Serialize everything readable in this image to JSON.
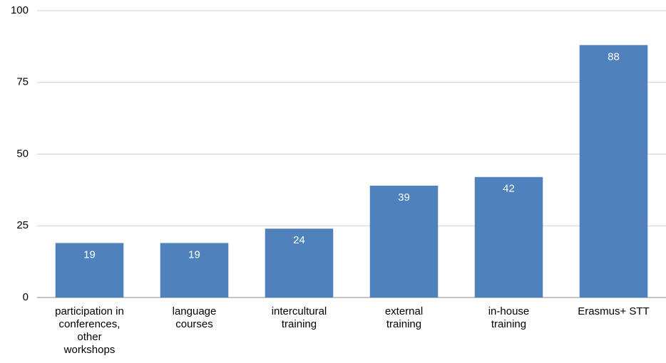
{
  "chart_data": {
    "type": "bar",
    "categories": [
      "participation in conferences, other workshops",
      "language courses",
      "intercultural training",
      "external training",
      "in-house training",
      "Erasmus+ STT"
    ],
    "values": [
      19,
      19,
      24,
      39,
      42,
      88
    ],
    "color": "#4f81bd",
    "ylim": [
      0,
      100
    ],
    "yticks": [
      0,
      25,
      50,
      75,
      100
    ],
    "grid": true
  }
}
